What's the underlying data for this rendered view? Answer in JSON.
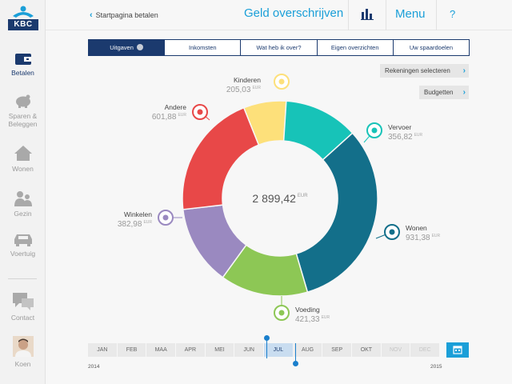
{
  "brand": {
    "name": "KBC"
  },
  "sidebar": {
    "items": [
      {
        "label": "Betalen",
        "icon": "wallet-icon",
        "active": true
      },
      {
        "label": "Sparen & Beleggen",
        "icon": "piggy-bank-icon",
        "active": false
      },
      {
        "label": "Wonen",
        "icon": "house-icon",
        "active": false
      },
      {
        "label": "Gezin",
        "icon": "family-icon",
        "active": false
      },
      {
        "label": "Voertuig",
        "icon": "car-icon",
        "active": false
      },
      {
        "label": "Contact",
        "icon": "chat-icon",
        "active": false
      },
      {
        "label": "Koen",
        "icon": "avatar",
        "active": false
      }
    ]
  },
  "header": {
    "back_label": "Startpagina betalen",
    "title": "Geld overschrijven",
    "menu_label": "Menu",
    "help_label": "?"
  },
  "tabs": [
    {
      "label": "Uitgaven",
      "active": true
    },
    {
      "label": "Inkomsten",
      "active": false
    },
    {
      "label": "Wat heb ik over?",
      "active": false
    },
    {
      "label": "Eigen overzichten",
      "active": false
    },
    {
      "label": "Uw spaardoelen",
      "active": false
    }
  ],
  "actions": {
    "select_accounts": "Rekeningen selecteren",
    "budgets": "Budgetten"
  },
  "chart_data": {
    "type": "pie",
    "donut": true,
    "total": "2 899,42",
    "currency": "EUR",
    "slices": [
      {
        "name": "Kinderen",
        "value": 205.03,
        "display": "205,03",
        "color": "#fde07a",
        "icon": "child-icon"
      },
      {
        "name": "Vervoer",
        "value": 356.82,
        "display": "356,82",
        "color": "#17c3b8",
        "icon": "car-icon"
      },
      {
        "name": "Wonen",
        "value": 931.38,
        "display": "931,38",
        "color": "#136f8a",
        "icon": "house-icon"
      },
      {
        "name": "Voeding",
        "value": 421.33,
        "display": "421,33",
        "color": "#8dc755",
        "icon": "cart-icon"
      },
      {
        "name": "Winkelen",
        "value": 382.98,
        "display": "382,98",
        "color": "#9a89c0",
        "icon": "shirt-icon"
      },
      {
        "name": "Andere",
        "value": 601.88,
        "display": "601,88",
        "color": "#e84848",
        "icon": "more-icon"
      }
    ]
  },
  "timeline": {
    "months": [
      "JAN",
      "FEB",
      "MAA",
      "APR",
      "MEI",
      "JUN",
      "JUL",
      "AUG",
      "SEP",
      "OKT",
      "NOV",
      "DEC"
    ],
    "selected": "JUL",
    "disabled": [
      "NOV",
      "DEC"
    ],
    "start_year": "2014",
    "end_year": "2015"
  }
}
